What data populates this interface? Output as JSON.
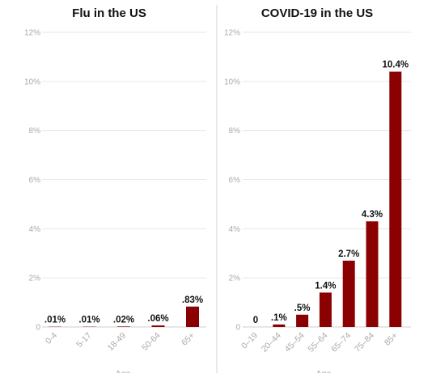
{
  "colors": {
    "bar": "#8b0000",
    "grid": "#e6e6e6",
    "divider": "#d4d4d4",
    "tick": "#aaaaaa"
  },
  "chart_data": [
    {
      "type": "bar",
      "title": "Flu in the US",
      "xlabel": "Age",
      "ylabel": "",
      "ylim": [
        0,
        12
      ],
      "yticks": [
        0,
        2,
        4,
        6,
        8,
        10,
        12
      ],
      "ytick_labels": [
        "0",
        "2%",
        "4%",
        "6%",
        "8%",
        "10%",
        "12%"
      ],
      "categories": [
        "0-4",
        "5-17",
        "18-49",
        "50-64",
        "65+"
      ],
      "values": [
        0.01,
        0.01,
        0.02,
        0.06,
        0.83
      ],
      "data_labels": [
        ".01%",
        ".01%",
        ".02%",
        ".06%",
        ".83%"
      ],
      "grid": true
    },
    {
      "type": "bar",
      "title": "COVID-19 in the US",
      "xlabel": "Age",
      "ylabel": "",
      "ylim": [
        0,
        12
      ],
      "yticks": [
        0,
        2,
        4,
        6,
        8,
        10,
        12
      ],
      "ytick_labels": [
        "0",
        "2%",
        "4%",
        "6%",
        "8%",
        "10%",
        "12%"
      ],
      "categories": [
        "0–19",
        "20–44",
        "45–54",
        "55–64",
        "65–74",
        "75–84",
        "85+"
      ],
      "values": [
        0,
        0.1,
        0.5,
        1.4,
        2.7,
        4.3,
        10.4
      ],
      "data_labels": [
        "0",
        ".1%",
        ".5%",
        "1.4%",
        "2.7%",
        "4.3%",
        "10.4%"
      ],
      "grid": true
    }
  ]
}
